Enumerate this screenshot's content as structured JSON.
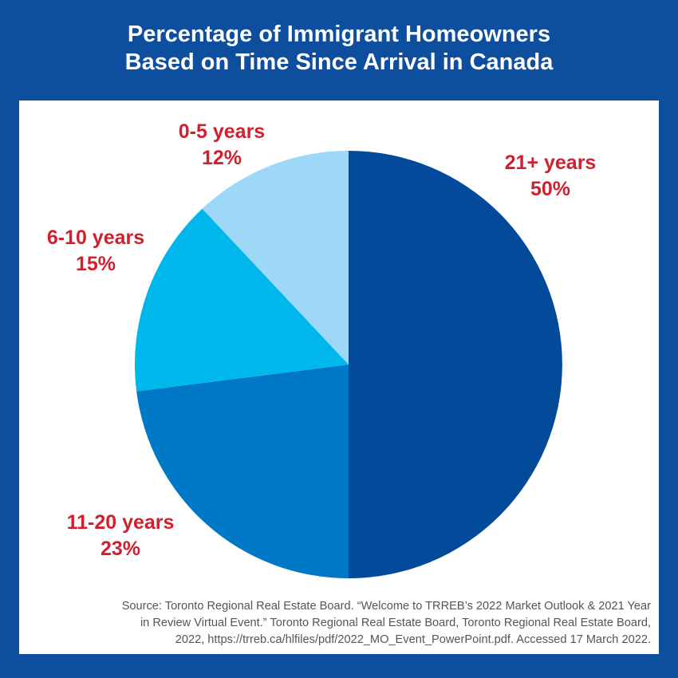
{
  "title_line1": "Percentage of Immigrant Homeowners",
  "title_line2": "Based on Time Since Arrival in Canada",
  "chart_data": {
    "type": "pie",
    "title": "Percentage of Immigrant Homeowners Based on Time Since Arrival in Canada",
    "slices": [
      {
        "label": "21+ years",
        "value": 50,
        "value_label": "50%",
        "color": "#034a9b"
      },
      {
        "label": "11-20 years",
        "value": 23,
        "value_label": "23%",
        "color": "#0078c8"
      },
      {
        "label": "6-10 years",
        "value": 15,
        "value_label": "15%",
        "color": "#00b7eb"
      },
      {
        "label": "0-5 years",
        "value": 12,
        "value_label": "12%",
        "color": "#9dd8f8"
      }
    ],
    "start": "12 o'clock",
    "direction": "clockwise",
    "label_color": "#d11f2e"
  },
  "source": {
    "line1": "Source: Toronto Regional Real Estate Board. “Welcome to TRREB’s 2022 Market Outlook & 2021 Year",
    "line2": "in Review Virtual Event.” Toronto Regional Real Estate Board, Toronto Regional Real Estate Board,",
    "line3": "2022, https://trreb.ca/hlfiles/pdf/2022_MO_Event_PowerPoint.pdf. Accessed 17 March 2022."
  },
  "colors": {
    "background": "#0d4f9e",
    "panel": "#ffffff",
    "title_text": "#ffffff"
  }
}
